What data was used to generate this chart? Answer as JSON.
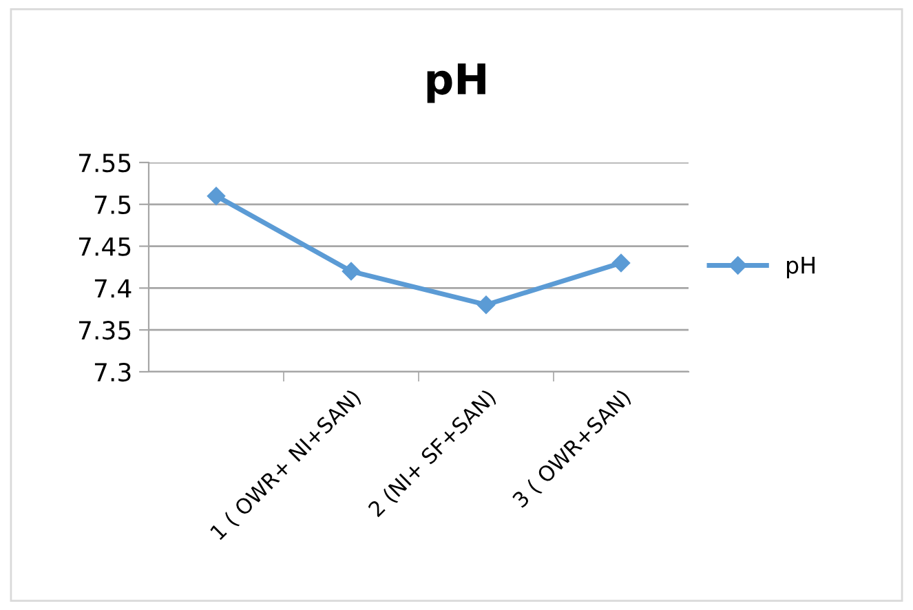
{
  "chart_data": {
    "type": "line",
    "title": "pH",
    "categories": [
      null,
      "1 ( OWR+ NI+SAN)",
      "2 (NI+ SF+SAN)",
      "3 ( OWR+SAN)"
    ],
    "series": [
      {
        "name": "pH",
        "color": "#5b9bd5",
        "values": [
          7.51,
          7.42,
          7.38,
          7.43
        ]
      }
    ],
    "ylim": [
      7.3,
      7.55
    ],
    "yticks": [
      {
        "value": 7.3,
        "label": "7.3"
      },
      {
        "value": 7.35,
        "label": "7.35"
      },
      {
        "value": 7.4,
        "label": "7.4"
      },
      {
        "value": 7.45,
        "label": "7.45"
      },
      {
        "value": 7.5,
        "label": "7.5"
      },
      {
        "value": 7.55,
        "label": "7.55"
      }
    ],
    "grid": "y",
    "legend": "right",
    "marker": "diamond",
    "line_style": "solid"
  }
}
